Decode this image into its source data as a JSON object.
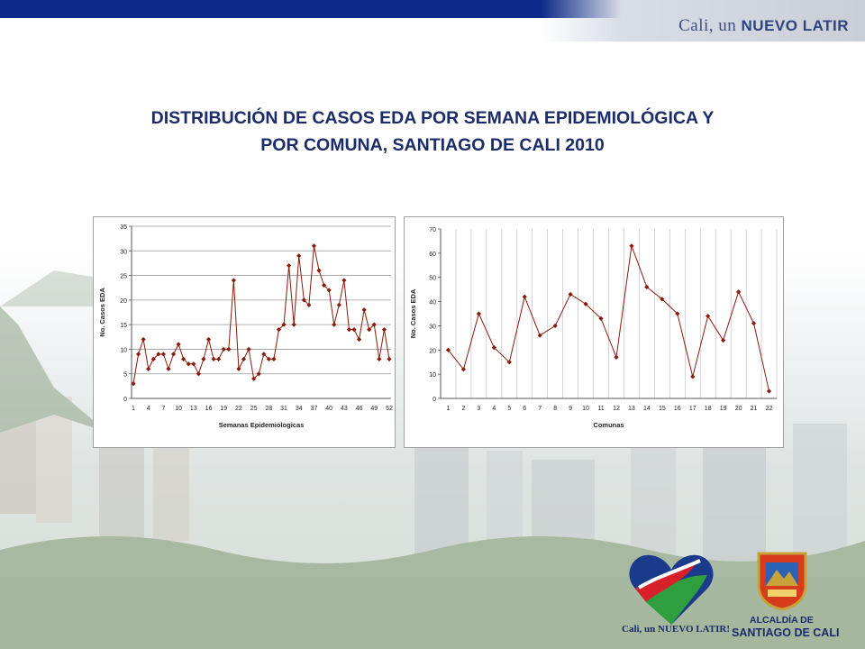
{
  "header": {
    "slogan_part1": "Cali, un ",
    "slogan_part2": "nuevo latir"
  },
  "title_line1": "DISTRIBUCIÓN DE CASOS EDA POR SEMANA EPIDEMIOLÓGICA Y",
  "title_line2": "POR COMUNA, SANTIAGO DE CALI 2010",
  "chart_data": [
    {
      "type": "line",
      "xlabel": "Semanas Epidemiologicas",
      "ylabel": "No. Casos EDA",
      "ylim": [
        0,
        35
      ],
      "yticks": [
        "0",
        "5",
        "10",
        "15",
        "20",
        "25",
        "30",
        "35"
      ],
      "xtick_labels": [
        "1",
        "4",
        "7",
        "10",
        "13",
        "16",
        "19",
        "22",
        "25",
        "28",
        "31",
        "34",
        "37",
        "40",
        "43",
        "46",
        "49",
        "52"
      ],
      "grid": "horizontal",
      "color": "#8b1a0a",
      "x": [
        1,
        2,
        3,
        4,
        5,
        6,
        7,
        8,
        9,
        10,
        11,
        12,
        13,
        14,
        15,
        16,
        17,
        18,
        19,
        20,
        21,
        22,
        23,
        24,
        25,
        26,
        27,
        28,
        29,
        30,
        31,
        32,
        33,
        34,
        35,
        36,
        37,
        38,
        39,
        40,
        41,
        42,
        43,
        44,
        45,
        46,
        47,
        48,
        49,
        50,
        51,
        52
      ],
      "values": [
        3,
        9,
        12,
        6,
        8,
        9,
        9,
        6,
        9,
        11,
        8,
        7,
        7,
        5,
        8,
        12,
        8,
        8,
        10,
        10,
        24,
        6,
        8,
        10,
        4,
        5,
        9,
        8,
        8,
        14,
        15,
        27,
        15,
        29,
        20,
        19,
        31,
        26,
        23,
        22,
        15,
        19,
        24,
        14,
        14,
        12,
        18,
        14,
        15,
        8,
        14,
        8
      ]
    },
    {
      "type": "line",
      "xlabel": "Comunas",
      "ylabel": "No. Casos EDA",
      "ylim": [
        0,
        70
      ],
      "yticks": [
        "0",
        "10",
        "20",
        "30",
        "40",
        "50",
        "60",
        "70"
      ],
      "categories": [
        "1",
        "2",
        "3",
        "4",
        "5",
        "6",
        "7",
        "8",
        "9",
        "10",
        "11",
        "12",
        "13",
        "14",
        "15",
        "16",
        "17",
        "18",
        "19",
        "20",
        "21",
        "22"
      ],
      "grid": "vertical",
      "color": "#8b1a0a",
      "values": [
        20,
        12,
        35,
        21,
        15,
        42,
        26,
        30,
        43,
        39,
        33,
        17,
        63,
        46,
        41,
        35,
        9,
        34,
        24,
        44,
        31,
        3
      ]
    }
  ],
  "logos": {
    "heart_caption_1": "Cali, un ",
    "heart_caption_2": "nuevo latir!",
    "alcaldia_line1": "ALCALDÍA DE",
    "alcaldia_line2": "SANTIAGO DE CALI"
  }
}
